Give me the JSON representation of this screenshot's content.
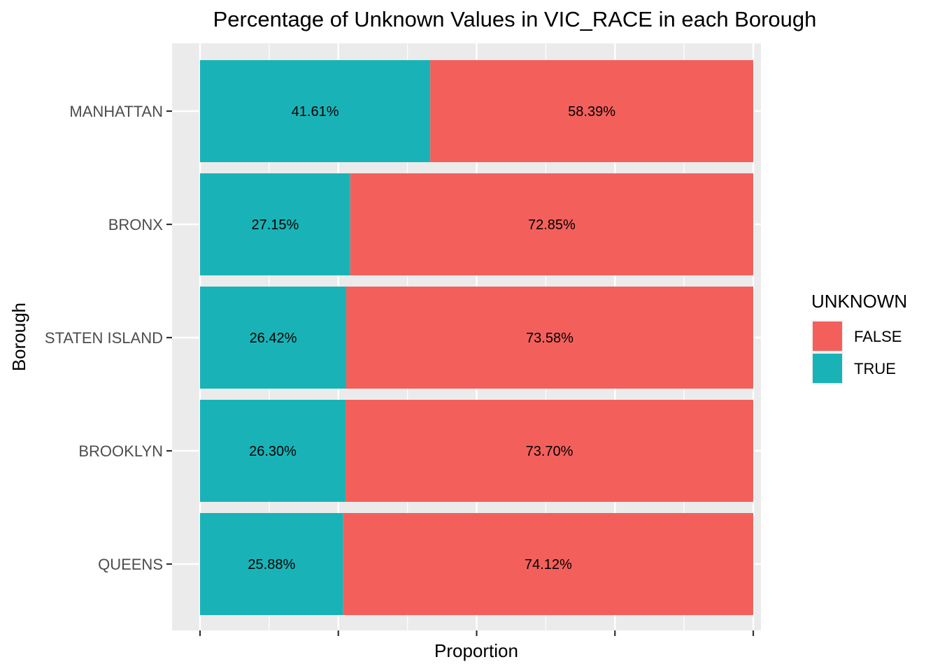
{
  "chart_data": {
    "type": "bar",
    "orientation": "horizontal",
    "stacked": true,
    "title": "Percentage of Unknown Values in VIC_RACE in each Borough",
    "xlabel": "Proportion",
    "ylabel": "Borough",
    "xlim": [
      0,
      1
    ],
    "x_tick_values": [
      0,
      0.25,
      0.5,
      0.75,
      1.0
    ],
    "x_tick_labels_shown": false,
    "grid": true,
    "categories": [
      "MANHATTAN",
      "BRONX",
      "STATEN ISLAND",
      "BROOKLYN",
      "QUEENS"
    ],
    "series": [
      {
        "name": "TRUE",
        "color": "#19b3b7",
        "values": [
          0.4161,
          0.2715,
          0.2642,
          0.263,
          0.2588
        ],
        "labels": [
          "41.61%",
          "27.15%",
          "26.42%",
          "26.30%",
          "25.88%"
        ]
      },
      {
        "name": "FALSE",
        "color": "#f3605b",
        "values": [
          0.5839,
          0.7285,
          0.7358,
          0.737,
          0.7412
        ],
        "labels": [
          "58.39%",
          "72.85%",
          "73.58%",
          "73.70%",
          "74.12%"
        ]
      }
    ],
    "legend": {
      "title": "UNKNOWN",
      "position": "right",
      "entries": [
        {
          "label": "FALSE",
          "color": "#f3605b"
        },
        {
          "label": "TRUE",
          "color": "#19b3b7"
        }
      ]
    }
  }
}
